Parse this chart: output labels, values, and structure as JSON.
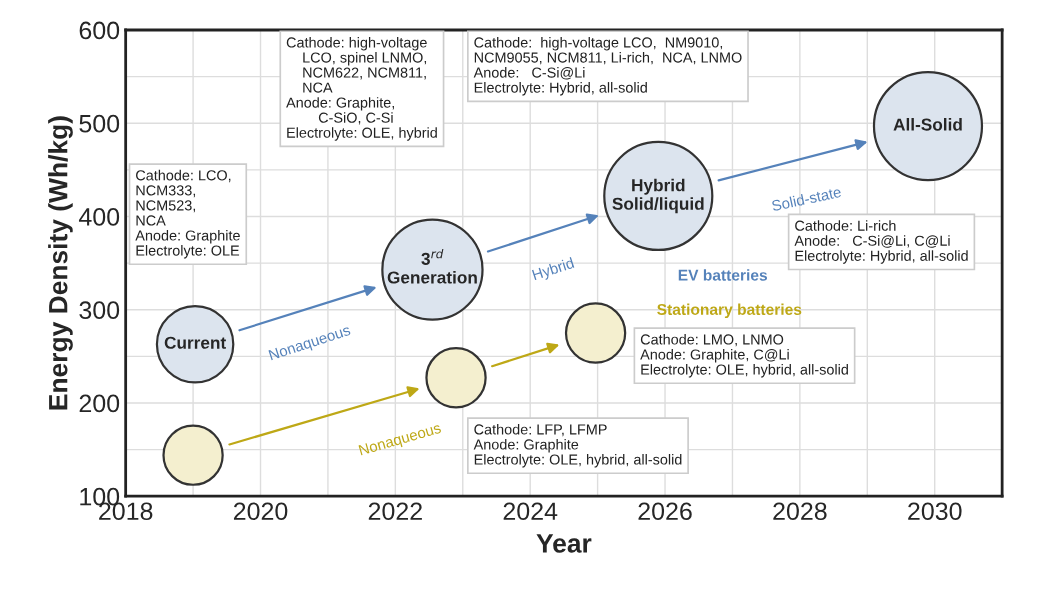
{
  "chart_data": {
    "type": "bubble",
    "xlabel": "Year",
    "ylabel": "Energy Density (Wh/kg)",
    "xlim": [
      2018,
      2031
    ],
    "ylim": [
      100,
      600
    ],
    "xticks": [
      2018,
      2020,
      2022,
      2024,
      2026,
      2028,
      2030
    ],
    "yticks": [
      100,
      200,
      300,
      400,
      500,
      600
    ],
    "grid": true,
    "series": [
      {
        "name": "EV batteries",
        "color": "#dce4ee",
        "x": [
          2019.03,
          2022.55,
          2025.9,
          2029.9
        ],
        "values": [
          263,
          343,
          422,
          497
        ],
        "sizes": [
          0.5,
          0.86,
          1,
          1
        ]
      },
      {
        "name": "Stationary batteries",
        "color": "#f4efcf",
        "x": [
          2019.0,
          2022.9,
          2024.97
        ],
        "values": [
          144,
          227,
          275
        ],
        "sizes": [
          0.3,
          0.3,
          0.3
        ]
      }
    ],
    "annotations": [
      {
        "text": "Current",
        "x": 2019.03,
        "y": 263
      },
      {
        "text": "3$^{rd}$\nGeneration",
        "x": 2022.55,
        "y": 343
      },
      {
        "text": "Hybrid\nSolid/liquid",
        "x": 2025.9,
        "y": 422
      },
      {
        "text": "All-Solid",
        "x": 2029.9,
        "y": 497
      },
      "Nonaqueous",
      "Hybrid",
      "Solid-state",
      "Nonaqueous",
      "Cathode: LCO,\nNCM333,\nNCM523,\nNCA\nAnode: Graphite\nElectrolyte: OLE",
      "Cathode: high-voltage\n    LCO, spinel LNMO,\n    NCM622, NCM811,\n    NCA\nAnode: Graphite,\n        C-SiO, C-Si\nElectrolyte: OLE, hybrid",
      "Cathode:  high-voltage LCO,  NM9010,\nNCM9055, NCM811, Li-rich,  NCA, LNMO\nAnode:   C-Si@Li\nElectrolyte: Hybrid, all-solid",
      "Cathode: Li-rich\nAnode:   C-Si@Li, C@Li\nElectrolyte: Hybrid, all-solid",
      "Cathode: LMO, LNMO\nAnode: Graphite, C@Li\nElectrolyte: OLE, hybrid, all-solid",
      "Cathode: LFP, LFMP\nAnode: Graphite\nElectrolyte: OLE, hybrid, all-solid"
    ]
  }
}
